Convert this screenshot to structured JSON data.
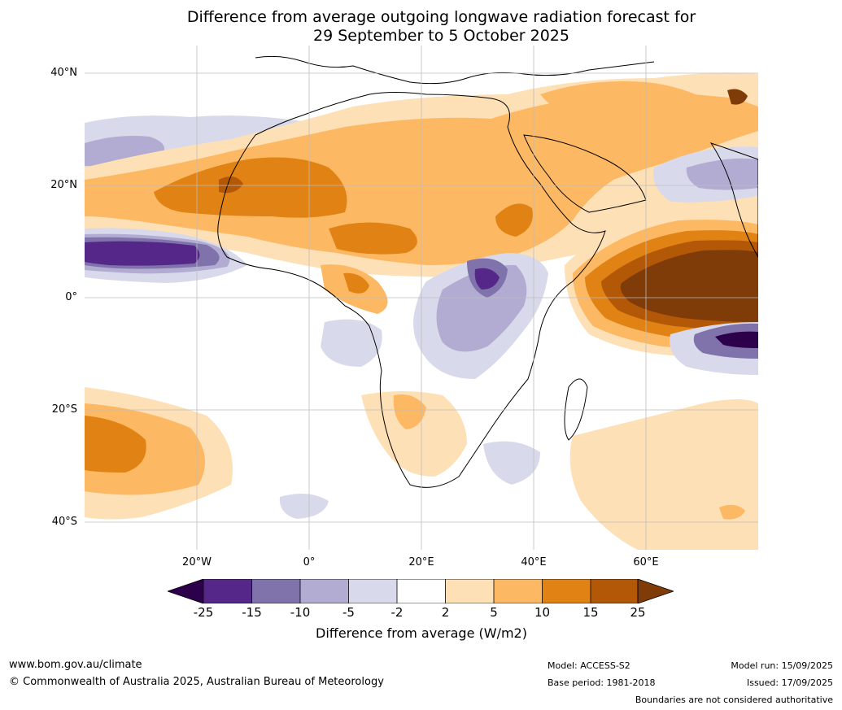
{
  "title": {
    "line1": "Difference from average outgoing longwave radiation forecast for",
    "line2": "29 September to 5 October 2025"
  },
  "map": {
    "lat_labels": [
      "40°N",
      "20°N",
      "0°",
      "20°S",
      "40°S"
    ],
    "lon_labels": [
      "20°W",
      "0°",
      "20°E",
      "40°E",
      "60°E"
    ],
    "colors": {
      "neg_25": "#2d004b",
      "neg_15": "#542788",
      "neg_10": "#8073ac",
      "neg_5": "#b2abd2",
      "neg_2": "#d8daeb",
      "neutral": "#ffffff",
      "pos_2": "#fee0b6",
      "pos_5": "#fdb863",
      "pos_10": "#e08214",
      "pos_15": "#b35806",
      "pos_25": "#7f3b08",
      "land_line": "#000000",
      "border_line": "#808080",
      "grid_line": "#bdbdbd"
    }
  },
  "colorbar": {
    "ticks": [
      "-25",
      "-15",
      "-10",
      "-5",
      "-2",
      "2",
      "5",
      "10",
      "15",
      "25"
    ],
    "label": "Difference from average (W/m2)"
  },
  "footer": {
    "website": "www.bom.gov.au/climate",
    "copyright": "© Commonwealth of Australia 2025, Australian Bureau of Meteorology",
    "model": "Model: ACCESS-S2",
    "base_period": "Base period: 1981-2018",
    "model_run": "Model run: 15/09/2025",
    "issued": "Issued: 17/09/2025",
    "disclaimer": "Boundaries are not considered authoritative"
  }
}
